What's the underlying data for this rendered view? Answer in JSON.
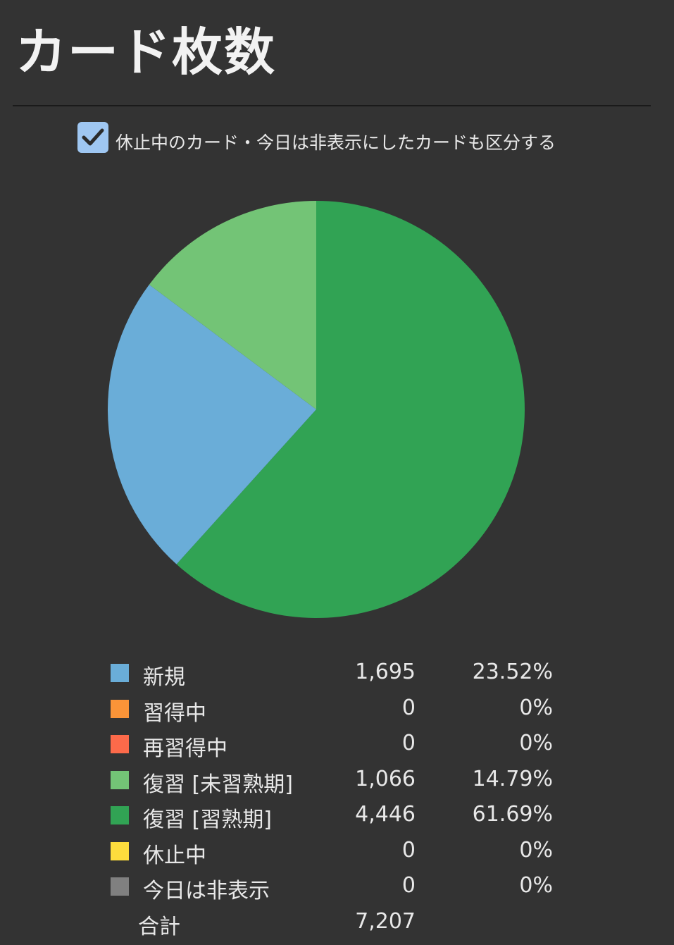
{
  "title": "カード枚数",
  "option": {
    "label": "休止中のカード・今日は非表示にしたカードも区分する",
    "checked": true
  },
  "chart_data": {
    "type": "pie",
    "start": "top, clockwise",
    "slices": [
      {
        "name": "新規",
        "count": "1,695",
        "percent": "23.52%",
        "value": 1695,
        "color": "#6aadd8"
      },
      {
        "name": "習得中",
        "count": "0",
        "percent": "0%",
        "value": 0,
        "color": "#fa9438"
      },
      {
        "name": "再習得中",
        "count": "0",
        "percent": "0%",
        "value": 0,
        "color": "#fc6a4a"
      },
      {
        "name": "復習 [未習熟期]",
        "count": "1,066",
        "percent": "14.79%",
        "value": 1066,
        "color": "#73c476"
      },
      {
        "name": "復習 [習熟期]",
        "count": "4,446",
        "percent": "61.69%",
        "value": 4446,
        "color": "#31a354"
      },
      {
        "name": "休止中",
        "count": "0",
        "percent": "0%",
        "value": 0,
        "color": "#fddd3d"
      },
      {
        "name": "今日は非表示",
        "count": "0",
        "percent": "0%",
        "value": 0,
        "color": "#808080"
      }
    ],
    "draw_order": [
      4,
      0,
      3
    ],
    "total": {
      "label": "合計",
      "count": "7,207"
    }
  }
}
